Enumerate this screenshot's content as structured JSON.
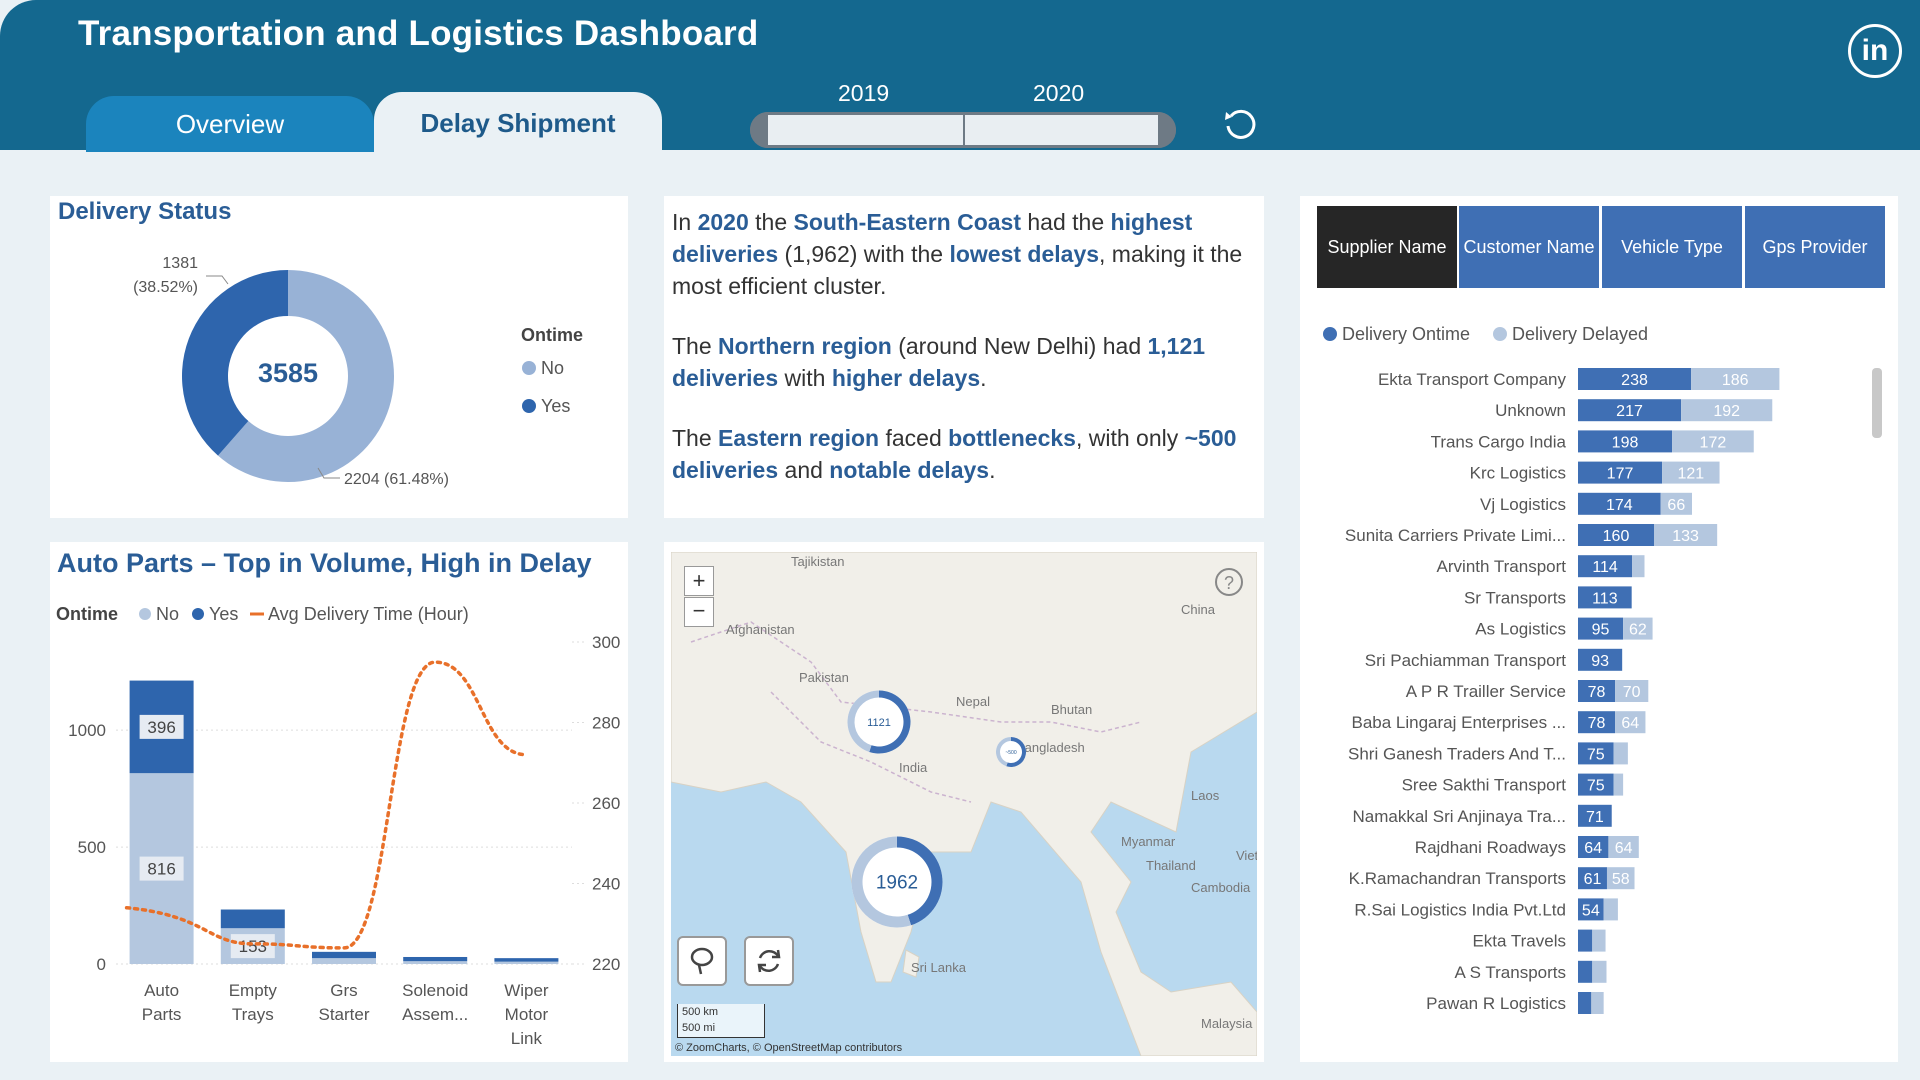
{
  "header": {
    "title": "Transportation and Logistics Dashboard",
    "tabs": [
      "Overview",
      "Delay Shipment"
    ],
    "years": [
      "2019",
      "2020"
    ],
    "linkedin": "in"
  },
  "delivery_status": {
    "title": "Delivery Status",
    "center_value": "3585",
    "legend_title": "Ontime",
    "legend": [
      "No",
      "Yes"
    ],
    "label_yes": "1381",
    "label_yes_pct": "(38.52%)",
    "label_no": "2204 (61.48%)",
    "chart_data": {
      "type": "pie",
      "categories": [
        "No",
        "Yes"
      ],
      "values": [
        2204,
        1381
      ],
      "total": 3585
    }
  },
  "story": {
    "p1": [
      "In ",
      "2020",
      " the ",
      "South-Eastern Coast",
      " had the ",
      "highest deliveries",
      " (1,962) with the ",
      "lowest delays",
      ", making it the most efficient cluster."
    ],
    "p2": [
      "The ",
      "Northern region",
      " (around New Delhi) had ",
      "1,121 deliveries",
      " with ",
      "higher delays",
      "."
    ],
    "p3": [
      "The ",
      "Eastern region",
      " faced ",
      "bottlenecks",
      ", with only ",
      "~500 deliveries",
      " and ",
      "notable delays",
      "."
    ]
  },
  "auto_parts": {
    "title": "Auto Parts – Top in Volume, High in Delay",
    "legend_title": "Ontime",
    "legend": [
      "No",
      "Yes",
      "Avg Delivery Time (Hour)"
    ],
    "chart_data": {
      "type": "bar",
      "categories": [
        "Auto Parts",
        "Empty Trays",
        "Grs Starter",
        "Solenoid Assem...",
        "Wiper Motor Link"
      ],
      "category_lines": [
        [
          "Auto",
          "Parts"
        ],
        [
          "Empty",
          "Trays"
        ],
        [
          "Grs",
          "Starter"
        ],
        [
          "Solenoid",
          "Assem..."
        ],
        [
          "Wiper",
          "Motor",
          "Link"
        ]
      ],
      "series": [
        {
          "name": "No",
          "values": [
            816,
            153,
            25,
            12,
            10
          ]
        },
        {
          "name": "Yes",
          "values": [
            396,
            80,
            27,
            18,
            15
          ]
        },
        {
          "name": "Avg Delivery Time (Hour)",
          "values": [
            232,
            225,
            224,
            295,
            272
          ]
        }
      ],
      "data_labels": {
        "No": [
          "816",
          "153"
        ],
        "Yes": [
          "396"
        ]
      },
      "ylim": [
        0,
        1300
      ],
      "y_ticks": [
        "0",
        "500",
        "1000"
      ],
      "y2lim": [
        220,
        300
      ],
      "y2_ticks": [
        "220",
        "240",
        "260",
        "280",
        "300"
      ]
    }
  },
  "map": {
    "places": [
      "Tajikistan",
      "China",
      "Afghanistan",
      "Pakistan",
      "Nepal",
      "Bhutan",
      "India",
      "Bangladesh",
      "Laos",
      "Myanmar",
      "Viet",
      "Thailand",
      "Cambodia",
      "Sri Lanka",
      "Malaysia"
    ],
    "clusters": [
      {
        "value": "1121"
      },
      {
        "value": "1962"
      },
      {
        "value": "~500"
      }
    ],
    "zoom_in": "+",
    "zoom_out": "−",
    "help": "?",
    "scale": [
      "500 km",
      "500 mi"
    ],
    "attribution": "© ZoomCharts, © OpenStreetMap contributors",
    "colors": {
      "ontime": "#3f6fb4",
      "delayed": "#b4c7df"
    }
  },
  "supplier": {
    "buttons": [
      "Supplier Name",
      "Customer Name",
      "Vehicle Type",
      "Gps Provider"
    ],
    "legend": [
      "Delivery Ontime",
      "Delivery Delayed"
    ],
    "chart_data": {
      "type": "bar",
      "categories": [
        "Ekta Transport Company",
        "Unknown",
        "Trans Cargo India",
        "Krc Logistics",
        "Vj Logistics",
        "Sunita Carriers Private Limi...",
        "Arvinth Transport",
        "Sr Transports",
        "As Logistics",
        "Sri Pachiamman Transport",
        "A P R Trailler Service",
        "Baba Lingaraj Enterprises ...",
        "Shri Ganesh Traders And T...",
        "Sree Sakthi Transport",
        "Namakkal Sri Anjinaya Tra...",
        "Rajdhani Roadways",
        "K.Ramachandran Transports",
        "R.Sai Logistics India Pvt.Ltd",
        "Ekta Travels",
        "A S Transports",
        "Pawan R Logistics"
      ],
      "series": [
        {
          "name": "Delivery Ontime",
          "values": [
            238,
            217,
            198,
            177,
            174,
            160,
            114,
            113,
            95,
            93,
            78,
            78,
            75,
            75,
            71,
            64,
            61,
            54,
            30,
            30,
            28
          ]
        },
        {
          "name": "Delivery Delayed",
          "values": [
            186,
            192,
            172,
            121,
            66,
            133,
            26,
            0,
            62,
            0,
            70,
            64,
            30,
            20,
            0,
            64,
            58,
            30,
            28,
            30,
            26
          ]
        }
      ],
      "labels": {
        "ontime": [
          "238",
          "217",
          "198",
          "177",
          "174",
          "160",
          "114",
          "113",
          "95",
          "93",
          "78",
          "78",
          "75",
          "75",
          "71",
          "64",
          "61",
          "54",
          "",
          "",
          ""
        ],
        "delayed": [
          "186",
          "192",
          "172",
          "121",
          "66",
          "133",
          "",
          "",
          "62",
          "",
          "70",
          "64",
          "",
          "",
          "",
          "64",
          "58",
          "",
          "",
          "",
          ""
        ]
      }
    }
  }
}
